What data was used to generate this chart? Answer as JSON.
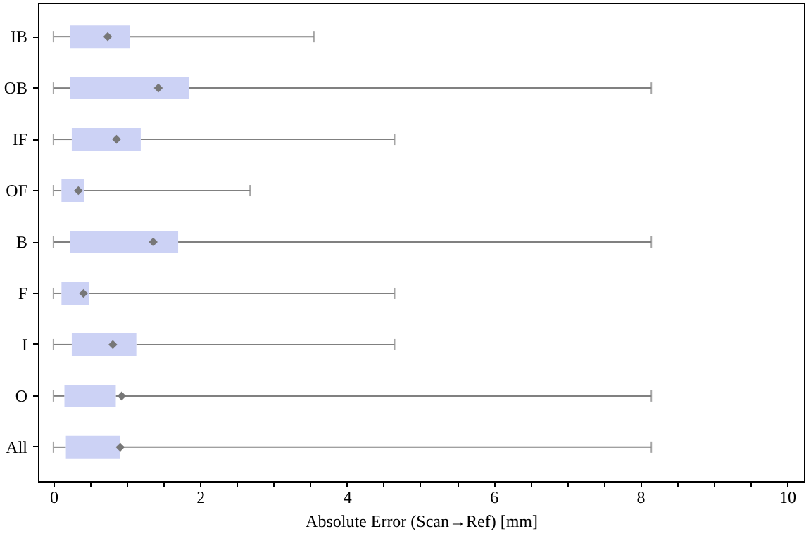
{
  "chart_data": {
    "type": "box",
    "orientation": "horizontal",
    "xlabel": "Absolute Error (Scan→Ref) [mm]",
    "categories": [
      "IB",
      "OB",
      "IF",
      "OF",
      "B",
      "F",
      "I",
      "O",
      "All"
    ],
    "color": "#ccd2f5",
    "marker": "diamond",
    "boxes": [
      {
        "low": 0,
        "q1": 0.23,
        "median": null,
        "q3": 1.04,
        "high": 3.55,
        "mean": 0.74
      },
      {
        "low": 0,
        "q1": 0.23,
        "median": null,
        "q3": 1.85,
        "high": 8.15,
        "mean": 1.43
      },
      {
        "low": 0,
        "q1": 0.25,
        "median": null,
        "q3": 1.19,
        "high": 4.65,
        "mean": 0.86
      },
      {
        "low": 0,
        "q1": 0.11,
        "median": null,
        "q3": 0.42,
        "high": 2.68,
        "mean": 0.34
      },
      {
        "low": 0,
        "q1": 0.23,
        "median": null,
        "q3": 1.7,
        "high": 8.15,
        "mean": 1.36
      },
      {
        "low": 0,
        "q1": 0.11,
        "median": null,
        "q3": 0.49,
        "high": 4.65,
        "mean": 0.41
      },
      {
        "low": 0,
        "q1": 0.25,
        "median": null,
        "q3": 1.13,
        "high": 4.65,
        "mean": 0.81
      },
      {
        "low": 0,
        "q1": 0.15,
        "median": null,
        "q3": 0.85,
        "high": 8.15,
        "mean": 0.93
      },
      {
        "low": 0,
        "q1": 0.17,
        "median": null,
        "q3": 0.91,
        "high": 8.15,
        "mean": 0.91
      }
    ],
    "xlim": [
      -0.21,
      10.23
    ],
    "xticks": [
      0,
      {
        "value": 0.5,
        "label": null
      },
      {
        "value": 1,
        "label": null
      },
      {
        "value": 1.5,
        "label": null
      },
      2,
      {
        "value": 2.5,
        "label": null
      },
      {
        "value": 3,
        "label": null
      },
      {
        "value": 3.5,
        "label": null
      },
      4,
      {
        "value": 4.5,
        "label": null
      },
      {
        "value": 5,
        "label": null
      },
      {
        "value": 5.5,
        "label": null
      },
      6,
      {
        "value": 6.5,
        "label": null
      },
      {
        "value": 7,
        "label": null
      },
      {
        "value": 7.5,
        "label": null
      },
      8,
      {
        "value": 8.5,
        "label": null
      },
      {
        "value": 9,
        "label": null
      },
      {
        "value": 9.5,
        "label": null
      },
      10
    ]
  }
}
